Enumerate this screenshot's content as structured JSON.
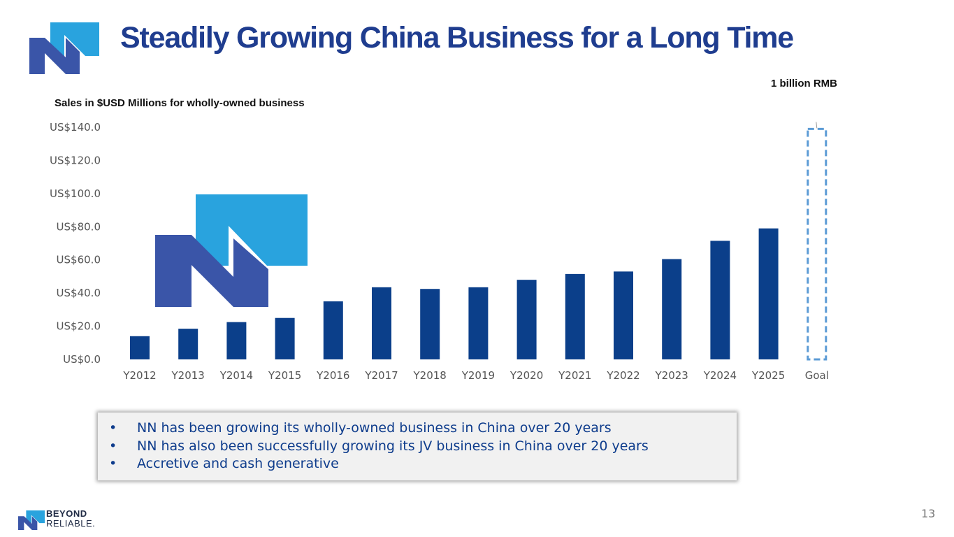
{
  "slide": {
    "title": "Steadily Growing China Business for a Long Time",
    "goal_annotation": "1 billion RMB",
    "page_number": "13"
  },
  "bullets": [
    "NN has been growing its wholly-owned business in China over 20 years",
    "NN has also been successfully growing its JV business in China over 20 years",
    "Accretive and cash generative"
  ],
  "footer": {
    "brand_line1": "BEYOND",
    "brand_line2": "RELIABLE."
  },
  "colors": {
    "bar": "#0b3f8a",
    "goal_outline": "#5b9bd5",
    "logo_dark": "#3a55a8",
    "logo_light": "#29a3de"
  },
  "chart_data": {
    "type": "bar",
    "title": "Sales in $USD Millions for wholly-owned business",
    "categories": [
      "Y2012",
      "Y2013",
      "Y2014",
      "Y2015",
      "Y2016",
      "Y2017",
      "Y2018",
      "Y2019",
      "Y2020",
      "Y2021",
      "Y2022",
      "Y2023",
      "Y2024",
      "Y2025",
      "Goal"
    ],
    "values": [
      14,
      18.5,
      22.5,
      25,
      35,
      43.5,
      42.5,
      43.5,
      48,
      51.5,
      53,
      60.5,
      71.5,
      79,
      139
    ],
    "ytick_labels": [
      "US$0.0",
      "US$20.0",
      "US$40.0",
      "US$60.0",
      "US$80.0",
      "US$100.0",
      "US$120.0",
      "US$140.0"
    ],
    "yticks": [
      0,
      20,
      40,
      60,
      80,
      100,
      120,
      140
    ],
    "ylim": [
      0,
      140
    ],
    "grid": false,
    "goal_category": "Goal"
  }
}
